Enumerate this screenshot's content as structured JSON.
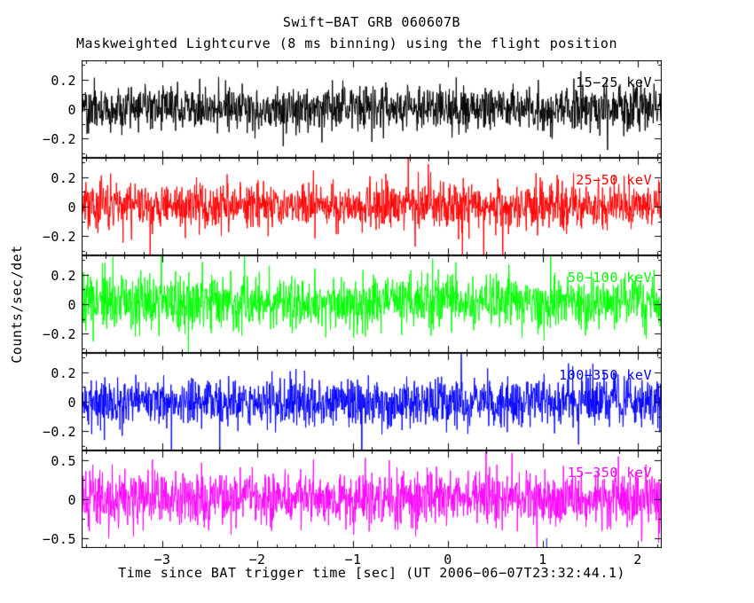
{
  "title": "Swift−BAT GRB 060607B",
  "subtitle": "Maskweighted Lightcurve (8 ms binning) using the flight position",
  "xlabel": "Time since BAT trigger time [sec] (UT 2006−06−07T23:32:44.1)",
  "ylabel": "Counts/sec/det",
  "chart_data": {
    "type": "line",
    "title": "Swift−BAT GRB 060607B",
    "subtitle": "Maskweighted Lightcurve (8 ms binning) using the flight position",
    "xlabel": "Time since BAT trigger time [sec] (UT 2006−06−07T23:32:44.1)",
    "ylabel": "Counts/sec/det",
    "x_range": [
      -3.85,
      2.25
    ],
    "xticks": [
      -3,
      -2,
      -1,
      0,
      1,
      2
    ],
    "xtick_labels": [
      "−3",
      "−2",
      "−1",
      "0",
      "1",
      "2"
    ],
    "x_minor_step": 0.2,
    "grid": false,
    "legend_position": "in-panel-top-right",
    "description": "Five stacked noise-dominated lightcurve panels, one per energy band; no obvious burst structure, consistent zero-mean noise.",
    "panels": [
      {
        "name": "15−25 keV",
        "color": "#000000",
        "ylim": [
          -0.33,
          0.33
        ],
        "yticks": [
          0.2,
          0,
          -0.2
        ],
        "ytick_labels": [
          "0.2",
          "0",
          "−0.2"
        ],
        "y_minor_step": 0.1,
        "mean": 0.005,
        "noise_sigma": 0.075,
        "spike_prob": 0.006,
        "spike_scale": 2.6,
        "points": 1500,
        "seed": 101
      },
      {
        "name": "25−50 keV",
        "color": "#ff0000",
        "ylim": [
          -0.33,
          0.33
        ],
        "yticks": [
          0.2,
          0,
          -0.2
        ],
        "ytick_labels": [
          "0.2",
          "0",
          "−0.2"
        ],
        "y_minor_step": 0.1,
        "mean": 0.005,
        "noise_sigma": 0.08,
        "spike_prob": 0.009,
        "spike_scale": 3.0,
        "points": 1500,
        "seed": 202
      },
      {
        "name": "50−100 keV",
        "color": "#00ff00",
        "ylim": [
          -0.33,
          0.33
        ],
        "yticks": [
          0.2,
          0,
          -0.2
        ],
        "ytick_labels": [
          "0.2",
          "0",
          "−0.2"
        ],
        "y_minor_step": 0.1,
        "mean": 0.01,
        "noise_sigma": 0.09,
        "spike_prob": 0.012,
        "spike_scale": 3.0,
        "points": 1500,
        "seed": 303
      },
      {
        "name": "100−350 keV",
        "color": "#0000ff",
        "ylim": [
          -0.33,
          0.33
        ],
        "yticks": [
          0.2,
          0,
          -0.2
        ],
        "ytick_labels": [
          "0.2",
          "0",
          "−0.2"
        ],
        "y_minor_step": 0.1,
        "mean": 0.0,
        "noise_sigma": 0.08,
        "spike_prob": 0.009,
        "spike_scale": 3.0,
        "points": 1500,
        "seed": 404
      },
      {
        "name": "15−350 keV",
        "color": "#ff00ff",
        "ylim": [
          -0.62,
          0.62
        ],
        "yticks": [
          0.5,
          0,
          -0.5
        ],
        "ytick_labels": [
          "0.5",
          "0",
          "−0.5"
        ],
        "y_minor_step": 0.25,
        "mean": 0.01,
        "noise_sigma": 0.17,
        "spike_prob": 0.008,
        "spike_scale": 2.5,
        "points": 1500,
        "seed": 505
      }
    ],
    "bottom_marker": {
      "x": 1.04,
      "color": "#0000ff"
    }
  }
}
